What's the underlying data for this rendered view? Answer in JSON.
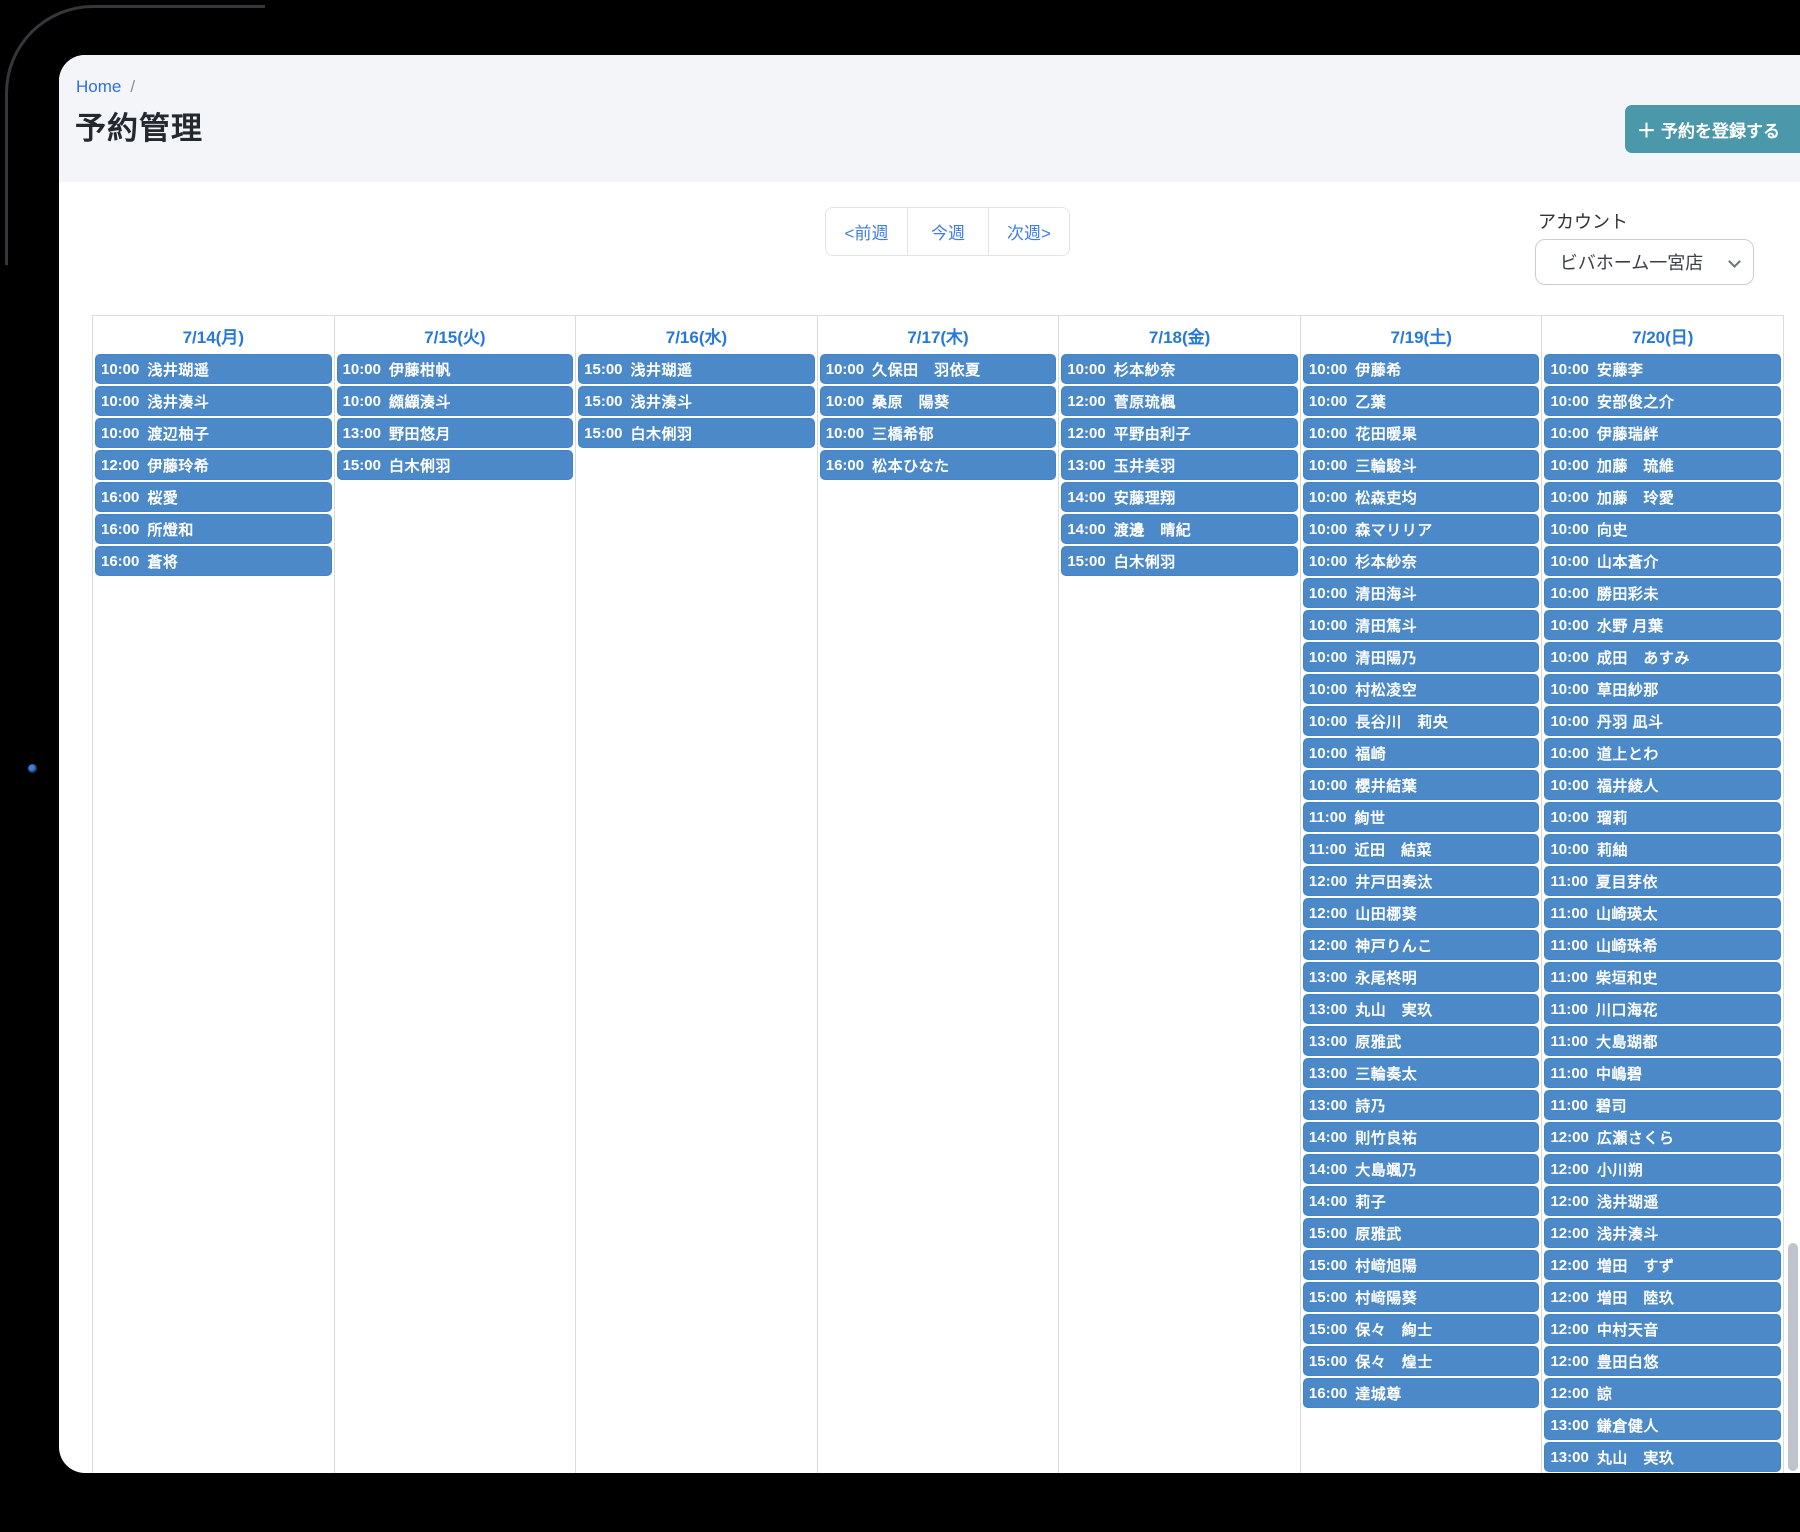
{
  "breadcrumb": {
    "home": "Home",
    "separator": "/"
  },
  "header": {
    "title": "予約管理",
    "plus": "＋",
    "register_button": "予約を登録する"
  },
  "toolbar": {
    "prev_week": "<前週",
    "this_week": "今週",
    "next_week": "次週>"
  },
  "account": {
    "label": "アカウント",
    "selected": "ビバホーム一宮店"
  },
  "colors": {
    "event_blue": "#4c89c8",
    "day_header_blue": "#2679d9",
    "accent_teal": "#4a98a9",
    "link_blue": "#2c6fe8"
  },
  "calendar": {
    "days": [
      {
        "label": "7/14(月)",
        "events": [
          {
            "time": "10:00",
            "name": "浅井瑚遥"
          },
          {
            "time": "10:00",
            "name": "浅井湊斗"
          },
          {
            "time": "10:00",
            "name": "渡辺柚子"
          },
          {
            "time": "12:00",
            "name": "伊藤玲希"
          },
          {
            "time": "16:00",
            "name": "桜愛"
          },
          {
            "time": "16:00",
            "name": "所燈和"
          },
          {
            "time": "16:00",
            "name": "蒼将"
          }
        ]
      },
      {
        "label": "7/15(火)",
        "events": [
          {
            "time": "10:00",
            "name": "伊藤柑帆"
          },
          {
            "time": "10:00",
            "name": "纐纈湊斗"
          },
          {
            "time": "13:00",
            "name": "野田悠月"
          },
          {
            "time": "15:00",
            "name": "白木俐羽"
          }
        ]
      },
      {
        "label": "7/16(水)",
        "events": [
          {
            "time": "15:00",
            "name": "浅井瑚遥"
          },
          {
            "time": "15:00",
            "name": "浅井湊斗"
          },
          {
            "time": "15:00",
            "name": "白木俐羽"
          }
        ]
      },
      {
        "label": "7/17(木)",
        "events": [
          {
            "time": "10:00",
            "name": "久保田　羽依夏"
          },
          {
            "time": "10:00",
            "name": "桑原　陽葵"
          },
          {
            "time": "10:00",
            "name": "三橋希郁"
          },
          {
            "time": "16:00",
            "name": "松本ひなた"
          }
        ]
      },
      {
        "label": "7/18(金)",
        "events": [
          {
            "time": "10:00",
            "name": "杉本紗奈"
          },
          {
            "time": "12:00",
            "name": "菅原琉楓"
          },
          {
            "time": "12:00",
            "name": "平野由利子"
          },
          {
            "time": "13:00",
            "name": "玉井美羽"
          },
          {
            "time": "14:00",
            "name": "安藤理翔"
          },
          {
            "time": "14:00",
            "name": "渡邊　晴紀"
          },
          {
            "time": "15:00",
            "name": "白木俐羽"
          }
        ]
      },
      {
        "label": "7/19(土)",
        "events": [
          {
            "time": "10:00",
            "name": "伊藤希"
          },
          {
            "time": "10:00",
            "name": "乙葉"
          },
          {
            "time": "10:00",
            "name": "花田暖果"
          },
          {
            "time": "10:00",
            "name": "三輪駿斗"
          },
          {
            "time": "10:00",
            "name": "松森吏均"
          },
          {
            "time": "10:00",
            "name": "森マリリア"
          },
          {
            "time": "10:00",
            "name": "杉本紗奈"
          },
          {
            "time": "10:00",
            "name": "清田海斗"
          },
          {
            "time": "10:00",
            "name": "清田篤斗"
          },
          {
            "time": "10:00",
            "name": "清田陽乃"
          },
          {
            "time": "10:00",
            "name": "村松凌空"
          },
          {
            "time": "10:00",
            "name": "長谷川　莉央"
          },
          {
            "time": "10:00",
            "name": "福崎"
          },
          {
            "time": "10:00",
            "name": "櫻井結葉"
          },
          {
            "time": "11:00",
            "name": "絢世"
          },
          {
            "time": "11:00",
            "name": "近田　結菜"
          },
          {
            "time": "12:00",
            "name": "井戸田奏汰"
          },
          {
            "time": "12:00",
            "name": "山田梛葵"
          },
          {
            "time": "12:00",
            "name": "神戸りんこ"
          },
          {
            "time": "13:00",
            "name": "永尾柊明"
          },
          {
            "time": "13:00",
            "name": "丸山　実玖"
          },
          {
            "time": "13:00",
            "name": "原雅武"
          },
          {
            "time": "13:00",
            "name": "三輪奏太"
          },
          {
            "time": "13:00",
            "name": "詩乃"
          },
          {
            "time": "14:00",
            "name": "則竹良祐"
          },
          {
            "time": "14:00",
            "name": "大島颯乃"
          },
          {
            "time": "14:00",
            "name": "莉子"
          },
          {
            "time": "15:00",
            "name": "原雅武"
          },
          {
            "time": "15:00",
            "name": "村﨑旭陽"
          },
          {
            "time": "15:00",
            "name": "村﨑陽葵"
          },
          {
            "time": "15:00",
            "name": "保々　絢士"
          },
          {
            "time": "15:00",
            "name": "保々　煌士"
          },
          {
            "time": "16:00",
            "name": "達城尊"
          }
        ]
      },
      {
        "label": "7/20(日)",
        "events": [
          {
            "time": "10:00",
            "name": "安藤李"
          },
          {
            "time": "10:00",
            "name": "安部俊之介"
          },
          {
            "time": "10:00",
            "name": "伊藤瑞絆"
          },
          {
            "time": "10:00",
            "name": "加藤　琉維"
          },
          {
            "time": "10:00",
            "name": "加藤　玲愛"
          },
          {
            "time": "10:00",
            "name": "向史"
          },
          {
            "time": "10:00",
            "name": "山本蒼介"
          },
          {
            "time": "10:00",
            "name": "勝田彩未"
          },
          {
            "time": "10:00",
            "name": "水野 月葉"
          },
          {
            "time": "10:00",
            "name": "成田　あすみ"
          },
          {
            "time": "10:00",
            "name": "草田紗那"
          },
          {
            "time": "10:00",
            "name": "丹羽 凪斗"
          },
          {
            "time": "10:00",
            "name": "道上とわ"
          },
          {
            "time": "10:00",
            "name": "福井綾人"
          },
          {
            "time": "10:00",
            "name": "瑠莉"
          },
          {
            "time": "10:00",
            "name": "莉紬"
          },
          {
            "time": "11:00",
            "name": "夏目芽依"
          },
          {
            "time": "11:00",
            "name": "山崎瑛太"
          },
          {
            "time": "11:00",
            "name": "山崎珠希"
          },
          {
            "time": "11:00",
            "name": "柴垣和史"
          },
          {
            "time": "11:00",
            "name": "川口海花"
          },
          {
            "time": "11:00",
            "name": "大島瑚都"
          },
          {
            "time": "11:00",
            "name": "中嶋碧"
          },
          {
            "time": "11:00",
            "name": "碧司"
          },
          {
            "time": "12:00",
            "name": "広瀬さくら"
          },
          {
            "time": "12:00",
            "name": "小川朔"
          },
          {
            "time": "12:00",
            "name": "浅井瑚遥"
          },
          {
            "time": "12:00",
            "name": "浅井湊斗"
          },
          {
            "time": "12:00",
            "name": "増田　すず"
          },
          {
            "time": "12:00",
            "name": "増田　陸玖"
          },
          {
            "time": "12:00",
            "name": "中村天音"
          },
          {
            "time": "12:00",
            "name": "豊田白悠"
          },
          {
            "time": "12:00",
            "name": "諒"
          },
          {
            "time": "13:00",
            "name": "鎌倉健人"
          },
          {
            "time": "13:00",
            "name": "丸山　実玖"
          }
        ]
      }
    ]
  }
}
